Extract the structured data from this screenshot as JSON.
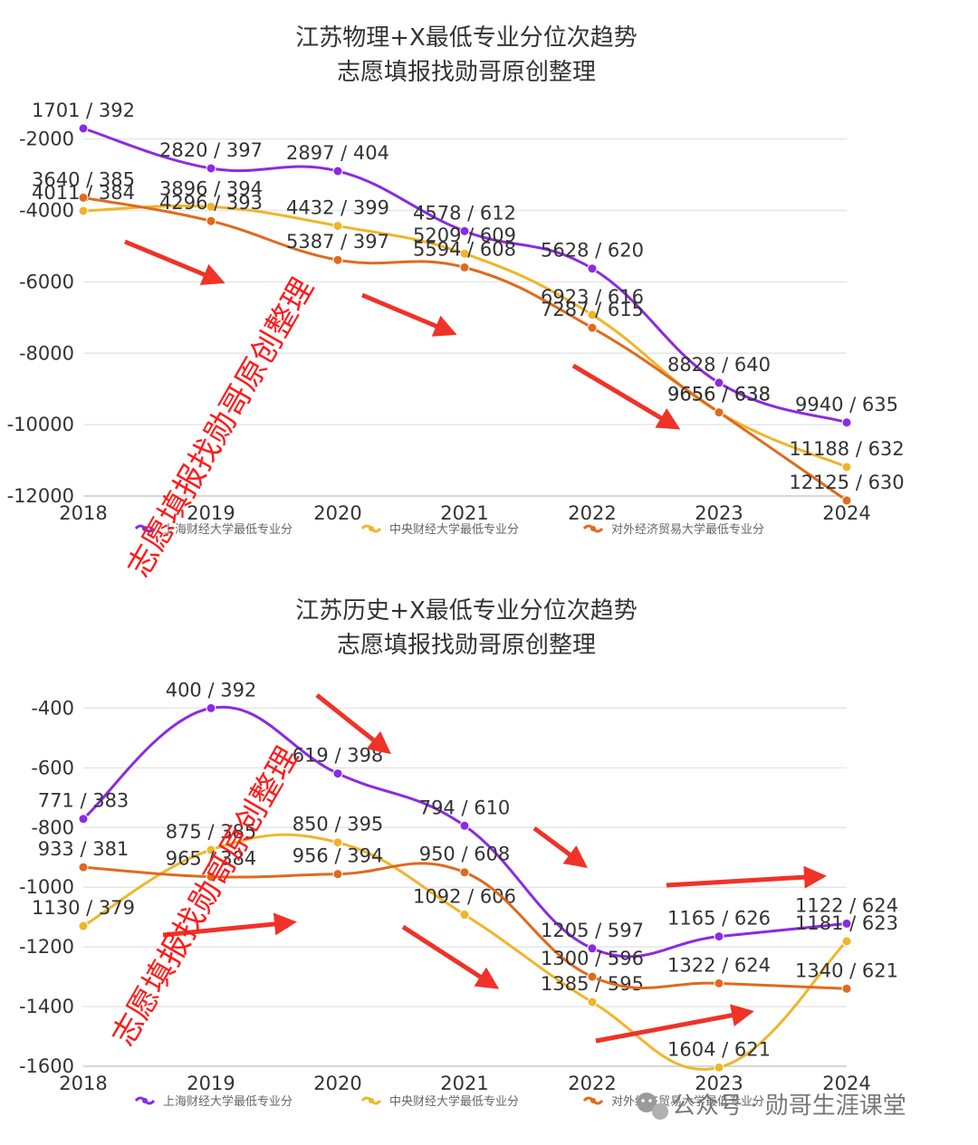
{
  "colors": {
    "purple": "#8a2be2",
    "yellow": "#f0b52a",
    "orange": "#e06a1c",
    "arrow": "#f03228",
    "watermark": "#ff1a1a"
  },
  "watermark_text": "志愿填报找勋哥原创整理",
  "footer": {
    "icon": "wechat-icon",
    "text": "公众号 · 勋哥生涯课堂"
  },
  "chart_data": [
    {
      "type": "line",
      "title": "江苏物理+X最低专业分位次趋势",
      "subtitle": "志愿填报找勋哥原创整理",
      "x": [
        "2018",
        "2019",
        "2020",
        "2021",
        "2022",
        "2023",
        "2024"
      ],
      "y_ticks": [
        "-2000",
        "-4000",
        "-6000",
        "-8000",
        "-10000",
        "-12000"
      ],
      "ylim": [
        -12000,
        -1400
      ],
      "grid": true,
      "legend_position": "bottom",
      "series": [
        {
          "name": "上海财经大学最低专业分",
          "color_key": "purple",
          "values": [
            -1701,
            -2820,
            -2897,
            -4578,
            -5628,
            -8828,
            -9940
          ],
          "labels": [
            "1701 / 392",
            "2820 / 397",
            "2897 / 404",
            "4578 / 612",
            "5628 / 620",
            "8828 / 640",
            "9940 / 635"
          ]
        },
        {
          "name": "中央财经大学最低专业分",
          "color_key": "yellow",
          "values": [
            -4011,
            -3896,
            -4432,
            -5209,
            -6923,
            -9656,
            -11188
          ],
          "labels": [
            "4011 / 384",
            "3896 / 394",
            "4432 / 399",
            "5209 / 609",
            "6923 / 616",
            "9656 / 638",
            "11188 / 632"
          ]
        },
        {
          "name": "对外经济贸易大学最低专业分",
          "color_key": "orange",
          "values": [
            -3640,
            -4296,
            -5387,
            -5594,
            -7287,
            -9656,
            -12125
          ],
          "labels": [
            "3640 / 385",
            "4296 / 393",
            "5387 / 397",
            "5594 / 608",
            "7287 / 615",
            "9656 / 638",
            "12125 / 630"
          ]
        }
      ]
    },
    {
      "type": "line",
      "title": "江苏历史+X最低专业分位次趋势",
      "subtitle": "志愿填报找勋哥原创整理",
      "x": [
        "2018",
        "2019",
        "2020",
        "2021",
        "2022",
        "2023",
        "2024"
      ],
      "y_ticks": [
        "-400",
        "-600",
        "-800",
        "-1000",
        "-1200",
        "-1400",
        "-1600"
      ],
      "ylim": [
        -1600,
        -320
      ],
      "grid": true,
      "legend_position": "bottom",
      "series": [
        {
          "name": "上海财经大学最低专业分",
          "color_key": "purple",
          "values": [
            -771,
            -400,
            -619,
            -794,
            -1205,
            -1165,
            -1122
          ],
          "labels": [
            "771 / 383",
            "400 / 392",
            "619 / 398",
            "794 / 610",
            "1205 / 597",
            "1165 / 626",
            "1122 / 624"
          ]
        },
        {
          "name": "中央财经大学最低专业分",
          "color_key": "yellow",
          "values": [
            -1130,
            -875,
            -850,
            -1092,
            -1385,
            -1604,
            -1181
          ],
          "labels": [
            "1130 / 379",
            "875 / 385",
            "850 / 395",
            "1092 / 606",
            "1385 / 595",
            "1604 / 621",
            "1181 / 623"
          ]
        },
        {
          "name": "对外经济贸易大学最低专业分",
          "color_key": "orange",
          "values": [
            -933,
            -965,
            -956,
            -950,
            -1300,
            -1322,
            -1340
          ],
          "labels": [
            "933 / 381",
            "965 / 384",
            "956 / 394",
            "950 / 608",
            "1300 / 596",
            "1322 / 624",
            "1340 / 621"
          ]
        }
      ]
    }
  ]
}
